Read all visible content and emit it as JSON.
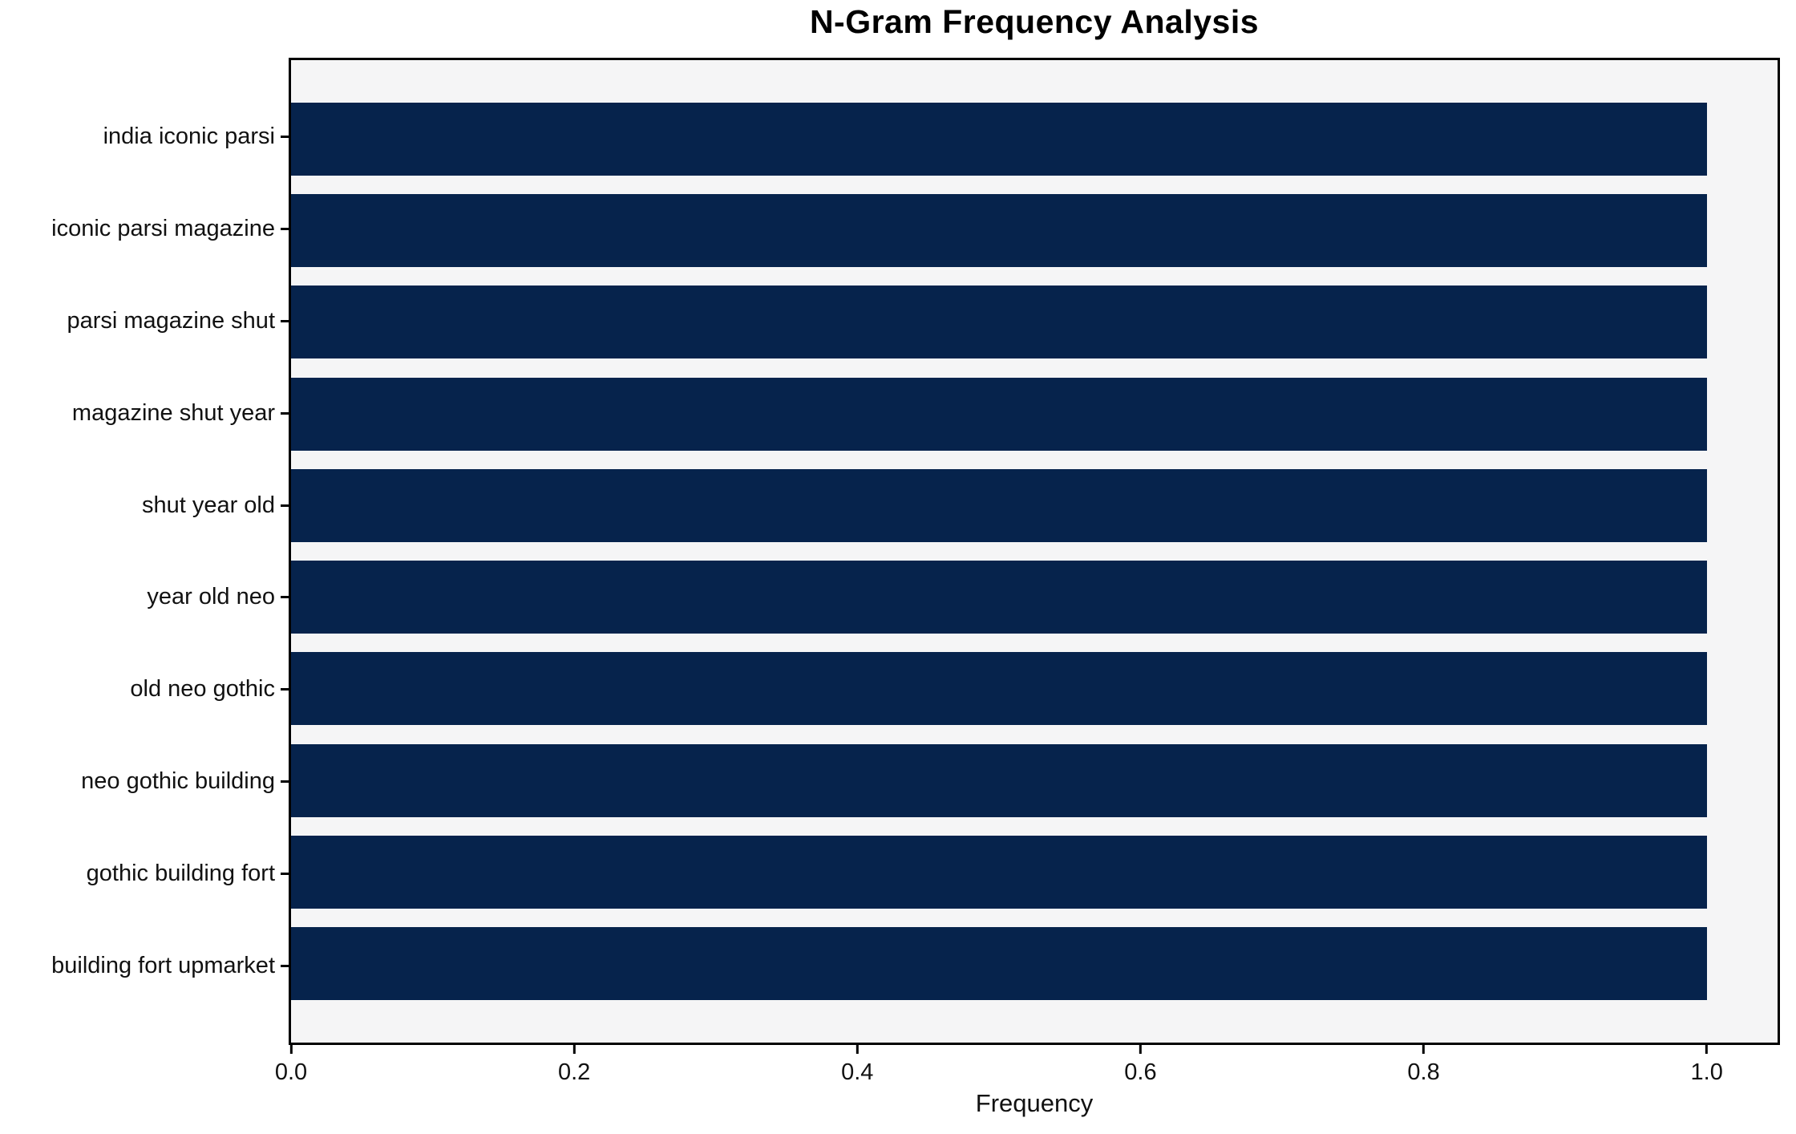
{
  "chart_data": {
    "type": "bar",
    "orientation": "horizontal",
    "title": "N-Gram Frequency Analysis",
    "categories": [
      "india iconic parsi",
      "iconic parsi magazine",
      "parsi magazine shut",
      "magazine shut year",
      "shut year old",
      "year old neo",
      "old neo gothic",
      "neo gothic building",
      "gothic building fort",
      "building fort upmarket"
    ],
    "values": [
      1.0,
      1.0,
      1.0,
      1.0,
      1.0,
      1.0,
      1.0,
      1.0,
      1.0,
      1.0
    ],
    "xlabel": "Frequency",
    "ylabel": "",
    "xlim": [
      0,
      1.05
    ],
    "xtick_values": [
      0.0,
      0.2,
      0.4,
      0.6,
      0.8,
      1.0
    ],
    "xtick_labels": [
      "0.0",
      "0.2",
      "0.4",
      "0.6",
      "0.8",
      "1.0"
    ],
    "grid": false,
    "legend": null,
    "colors": {
      "bar": "#06234c",
      "plot_background": "#f5f5f6",
      "figure_background": "#ffffff",
      "spine": "#000000",
      "text": "#111111"
    }
  }
}
